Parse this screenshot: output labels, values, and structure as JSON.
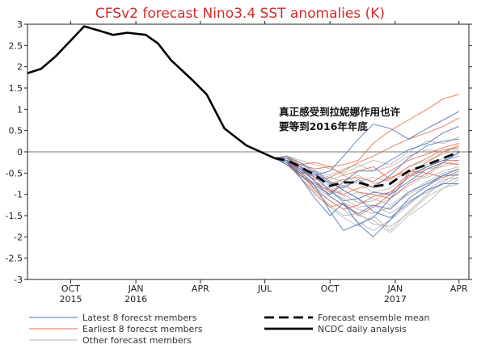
{
  "chart_data": {
    "type": "line",
    "title": "CFSv2 forecast Nino3.4 SST anomalies (K)",
    "xlabel": "",
    "ylabel": "",
    "ylim": [
      -3,
      3
    ],
    "yticks": [
      "3",
      "2.5",
      "2",
      "1.5",
      "1",
      "0.5",
      "0",
      "-0.5",
      "-1",
      "-1.5",
      "-2",
      "-2.5",
      "-3"
    ],
    "xlim": [
      "2015-08-01",
      "2017-04-15"
    ],
    "xticks": [
      {
        "line1": "OCT",
        "line2": "2015",
        "date": "2015-10-01"
      },
      {
        "line1": "JAN",
        "line2": "2016",
        "date": "2016-01-01"
      },
      {
        "line1": "APR",
        "line2": "",
        "date": "2016-04-01"
      },
      {
        "line1": "JUL",
        "line2": "",
        "date": "2016-07-01"
      },
      {
        "line1": "OCT",
        "line2": "",
        "date": "2016-10-01"
      },
      {
        "line1": "JAN",
        "line2": "2017",
        "date": "2017-01-01"
      },
      {
        "line1": "APR",
        "line2": "",
        "date": "2017-04-01"
      }
    ],
    "zero_line": true,
    "grid": false,
    "annotation": {
      "line1": "真正感受到拉妮娜作用也许",
      "line2": "要等到2016年年底",
      "x": "2016-07-21",
      "y": 0.85
    },
    "colors": {
      "title": "#d42a2a",
      "latest": "#4a73b8",
      "earliest": "#e86a4a",
      "other": "#b4b4b4",
      "analysis": "#000000",
      "ensemble": "#000000"
    },
    "legend": {
      "placement": "bottom",
      "items": [
        {
          "key": "latest",
          "label": "Latest 8 forecst members",
          "style": "solid-thin"
        },
        {
          "key": "earliest",
          "label": "Earliest 8 forecst members",
          "style": "solid-thin"
        },
        {
          "key": "other",
          "label": "Other forecast members",
          "style": "solid-thin"
        },
        {
          "key": "ensemble",
          "label": "Forecast ensemble mean",
          "style": "dashed-thick"
        },
        {
          "key": "analysis",
          "label": "NCDC daily analysis",
          "style": "solid-thick"
        }
      ]
    },
    "analysis": {
      "x": [
        "2015-08-01",
        "2015-08-20",
        "2015-09-10",
        "2015-10-20",
        "2015-11-10",
        "2015-11-30",
        "2015-12-20",
        "2016-01-15",
        "2016-02-01",
        "2016-02-20",
        "2016-03-20",
        "2016-04-10",
        "2016-05-05",
        "2016-06-05",
        "2016-06-25",
        "2016-07-15"
      ],
      "y": [
        1.85,
        1.95,
        2.25,
        2.95,
        2.85,
        2.75,
        2.8,
        2.75,
        2.55,
        2.15,
        1.7,
        1.35,
        0.55,
        0.15,
        0.0,
        -0.15
      ]
    },
    "ensemble_mean": {
      "x": [
        "2016-07-15",
        "2016-08-01",
        "2016-08-20",
        "2016-09-10",
        "2016-10-01",
        "2016-10-20",
        "2016-11-10",
        "2016-12-01",
        "2016-12-25",
        "2017-01-20",
        "2017-02-15",
        "2017-03-10",
        "2017-04-01"
      ],
      "y": [
        -0.15,
        -0.2,
        -0.35,
        -0.55,
        -0.8,
        -0.72,
        -0.72,
        -0.82,
        -0.75,
        -0.45,
        -0.3,
        -0.15,
        0.0
      ]
    },
    "members_x": [
      "2016-07-15",
      "2016-08-01",
      "2016-08-20",
      "2016-09-10",
      "2016-10-01",
      "2016-10-20",
      "2016-11-10",
      "2016-12-01",
      "2016-12-25",
      "2017-01-20",
      "2017-02-15",
      "2017-03-10",
      "2017-04-01"
    ],
    "members": [
      {
        "group": "latest",
        "y": [
          -0.15,
          -0.25,
          -0.45,
          -0.8,
          -1.4,
          -1.85,
          -1.7,
          -1.55,
          -1.1,
          -0.55,
          -0.35,
          -0.2,
          -0.1
        ]
      },
      {
        "group": "latest",
        "y": [
          -0.15,
          -0.2,
          -0.6,
          -1.1,
          -1.5,
          -1.2,
          -1.7,
          -2.0,
          -1.6,
          -1.1,
          -0.8,
          -0.55,
          -0.4
        ]
      },
      {
        "group": "latest",
        "y": [
          -0.15,
          -0.15,
          -0.35,
          -0.55,
          -0.45,
          -0.1,
          0.3,
          0.65,
          0.55,
          0.3,
          0.55,
          0.75,
          0.95
        ]
      },
      {
        "group": "latest",
        "y": [
          -0.15,
          -0.3,
          -0.5,
          -0.45,
          -0.7,
          -0.9,
          -1.1,
          -0.95,
          -1.0,
          -0.7,
          -0.4,
          -0.25,
          0.0
        ]
      },
      {
        "group": "latest",
        "y": [
          -0.15,
          -0.1,
          -0.25,
          -0.5,
          -0.75,
          -0.85,
          -0.65,
          -0.85,
          -0.55,
          -0.15,
          0.15,
          0.25,
          0.3
        ]
      },
      {
        "group": "latest",
        "y": [
          -0.15,
          -0.2,
          -0.35,
          -0.7,
          -1.05,
          -1.25,
          -1.45,
          -1.25,
          -1.35,
          -0.95,
          -0.75,
          -0.55,
          -0.55
        ]
      },
      {
        "group": "latest",
        "y": [
          -0.15,
          -0.25,
          -0.55,
          -0.8,
          -1.0,
          -0.7,
          -0.45,
          -0.45,
          -0.2,
          0.05,
          0.2,
          0.45,
          0.6
        ]
      },
      {
        "group": "latest",
        "y": [
          -0.15,
          -0.2,
          -0.4,
          -0.6,
          -0.9,
          -1.15,
          -1.1,
          -1.4,
          -1.55,
          -1.2,
          -0.9,
          -0.75,
          -0.75
        ]
      },
      {
        "group": "earliest",
        "y": [
          -0.15,
          -0.15,
          -0.3,
          -0.4,
          -0.35,
          -0.3,
          -0.2,
          0.2,
          0.5,
          0.75,
          1.0,
          1.25,
          1.35
        ]
      },
      {
        "group": "earliest",
        "y": [
          -0.15,
          -0.25,
          -0.6,
          -1.0,
          -1.3,
          -1.2,
          -1.5,
          -1.3,
          -1.0,
          -0.5,
          -0.25,
          0.0,
          0.15
        ]
      },
      {
        "group": "earliest",
        "y": [
          -0.15,
          -0.2,
          -0.3,
          -0.25,
          -0.35,
          -0.55,
          -0.45,
          -0.35,
          -0.65,
          -0.35,
          -0.15,
          0.05,
          0.1
        ]
      },
      {
        "group": "earliest",
        "y": [
          -0.15,
          -0.3,
          -0.55,
          -0.75,
          -0.9,
          -1.0,
          -0.85,
          -0.8,
          -0.6,
          -0.45,
          -0.5,
          -0.25,
          -0.3
        ]
      },
      {
        "group": "earliest",
        "y": [
          -0.15,
          -0.25,
          -0.5,
          -0.9,
          -1.15,
          -1.35,
          -1.25,
          -1.05,
          -0.95,
          -0.6,
          -0.35,
          -0.2,
          -0.2
        ]
      },
      {
        "group": "earliest",
        "y": [
          -0.15,
          -0.2,
          -0.45,
          -0.65,
          -0.6,
          -0.45,
          -0.25,
          -0.1,
          0.1,
          0.3,
          0.45,
          0.6,
          0.8
        ]
      },
      {
        "group": "earliest",
        "y": [
          -0.15,
          -0.1,
          -0.35,
          -0.7,
          -0.95,
          -0.8,
          -0.95,
          -1.0,
          -1.1,
          -0.75,
          -0.5,
          -0.6,
          -0.45
        ]
      },
      {
        "group": "earliest",
        "y": [
          -0.15,
          -0.25,
          -0.4,
          -0.55,
          -0.75,
          -0.65,
          -0.6,
          -0.7,
          -0.45,
          -0.2,
          -0.05,
          0.1,
          0.2
        ]
      },
      {
        "group": "other",
        "y": [
          -0.15,
          -0.2,
          -0.5,
          -0.9,
          -1.3,
          -1.55,
          -1.75,
          -1.5,
          -1.85,
          -1.4,
          -1.0,
          -0.7,
          -0.5
        ]
      },
      {
        "group": "other",
        "y": [
          -0.15,
          -0.3,
          -0.6,
          -0.95,
          -1.25,
          -1.5,
          -1.45,
          -1.7,
          -1.75,
          -1.45,
          -1.05,
          -0.85,
          -0.75
        ]
      },
      {
        "group": "other",
        "y": [
          -0.15,
          -0.1,
          -0.2,
          -0.3,
          -0.4,
          -0.5,
          -0.35,
          -0.2,
          -0.3,
          0.0,
          0.25,
          0.2,
          0.35
        ]
      },
      {
        "group": "other",
        "y": [
          -0.15,
          -0.25,
          -0.45,
          -0.6,
          -0.8,
          -1.0,
          -1.2,
          -1.15,
          -0.95,
          -0.6,
          -0.4,
          -0.35,
          -0.25
        ]
      },
      {
        "group": "other",
        "y": [
          -0.15,
          -0.2,
          -0.35,
          -0.55,
          -0.65,
          -0.55,
          -0.75,
          -0.95,
          -0.85,
          -0.55,
          -0.6,
          -0.45,
          -0.35
        ]
      },
      {
        "group": "other",
        "y": [
          -0.15,
          -0.3,
          -0.55,
          -0.85,
          -1.15,
          -1.35,
          -1.65,
          -1.85,
          -1.6,
          -1.25,
          -0.9,
          -0.65,
          -0.6
        ]
      },
      {
        "group": "other",
        "y": [
          -0.15,
          -0.15,
          -0.25,
          -0.45,
          -0.55,
          -0.4,
          -0.3,
          -0.45,
          -0.35,
          -0.1,
          0.05,
          0.0,
          0.1
        ]
      },
      {
        "group": "other",
        "y": [
          -0.15,
          -0.25,
          -0.4,
          -0.7,
          -0.85,
          -1.05,
          -0.95,
          -1.1,
          -1.25,
          -0.95,
          -0.7,
          -0.5,
          -0.4
        ]
      },
      {
        "group": "other",
        "y": [
          -0.15,
          -0.2,
          -0.5,
          -0.75,
          -1.0,
          -0.9,
          -1.1,
          -1.3,
          -1.1,
          -0.8,
          -0.55,
          -0.3,
          -0.2
        ]
      },
      {
        "group": "other",
        "y": [
          -0.15,
          -0.3,
          -0.45,
          -0.65,
          -0.7,
          -0.8,
          -0.7,
          -0.6,
          -0.7,
          -0.45,
          -0.3,
          -0.15,
          -0.05
        ]
      },
      {
        "group": "other",
        "y": [
          -0.15,
          -0.1,
          -0.3,
          -0.6,
          -0.9,
          -1.2,
          -1.35,
          -1.45,
          -1.3,
          -1.0,
          -0.8,
          -0.6,
          -0.5
        ]
      },
      {
        "group": "other",
        "y": [
          -0.15,
          -0.2,
          -0.55,
          -0.85,
          -1.05,
          -1.25,
          -1.5,
          -1.6,
          -1.9,
          -1.5,
          -1.2,
          -0.85,
          -0.65
        ]
      },
      {
        "group": "other",
        "y": [
          -0.15,
          -0.25,
          -0.35,
          -0.5,
          -0.6,
          -0.7,
          -0.55,
          -0.75,
          -0.65,
          -0.35,
          -0.2,
          -0.05,
          0.05
        ]
      },
      {
        "group": "other",
        "y": [
          -0.15,
          -0.15,
          -0.4,
          -0.7,
          -0.95,
          -1.1,
          -1.3,
          -1.25,
          -1.45,
          -1.15,
          -0.95,
          -0.75,
          -0.6
        ]
      }
    ]
  }
}
